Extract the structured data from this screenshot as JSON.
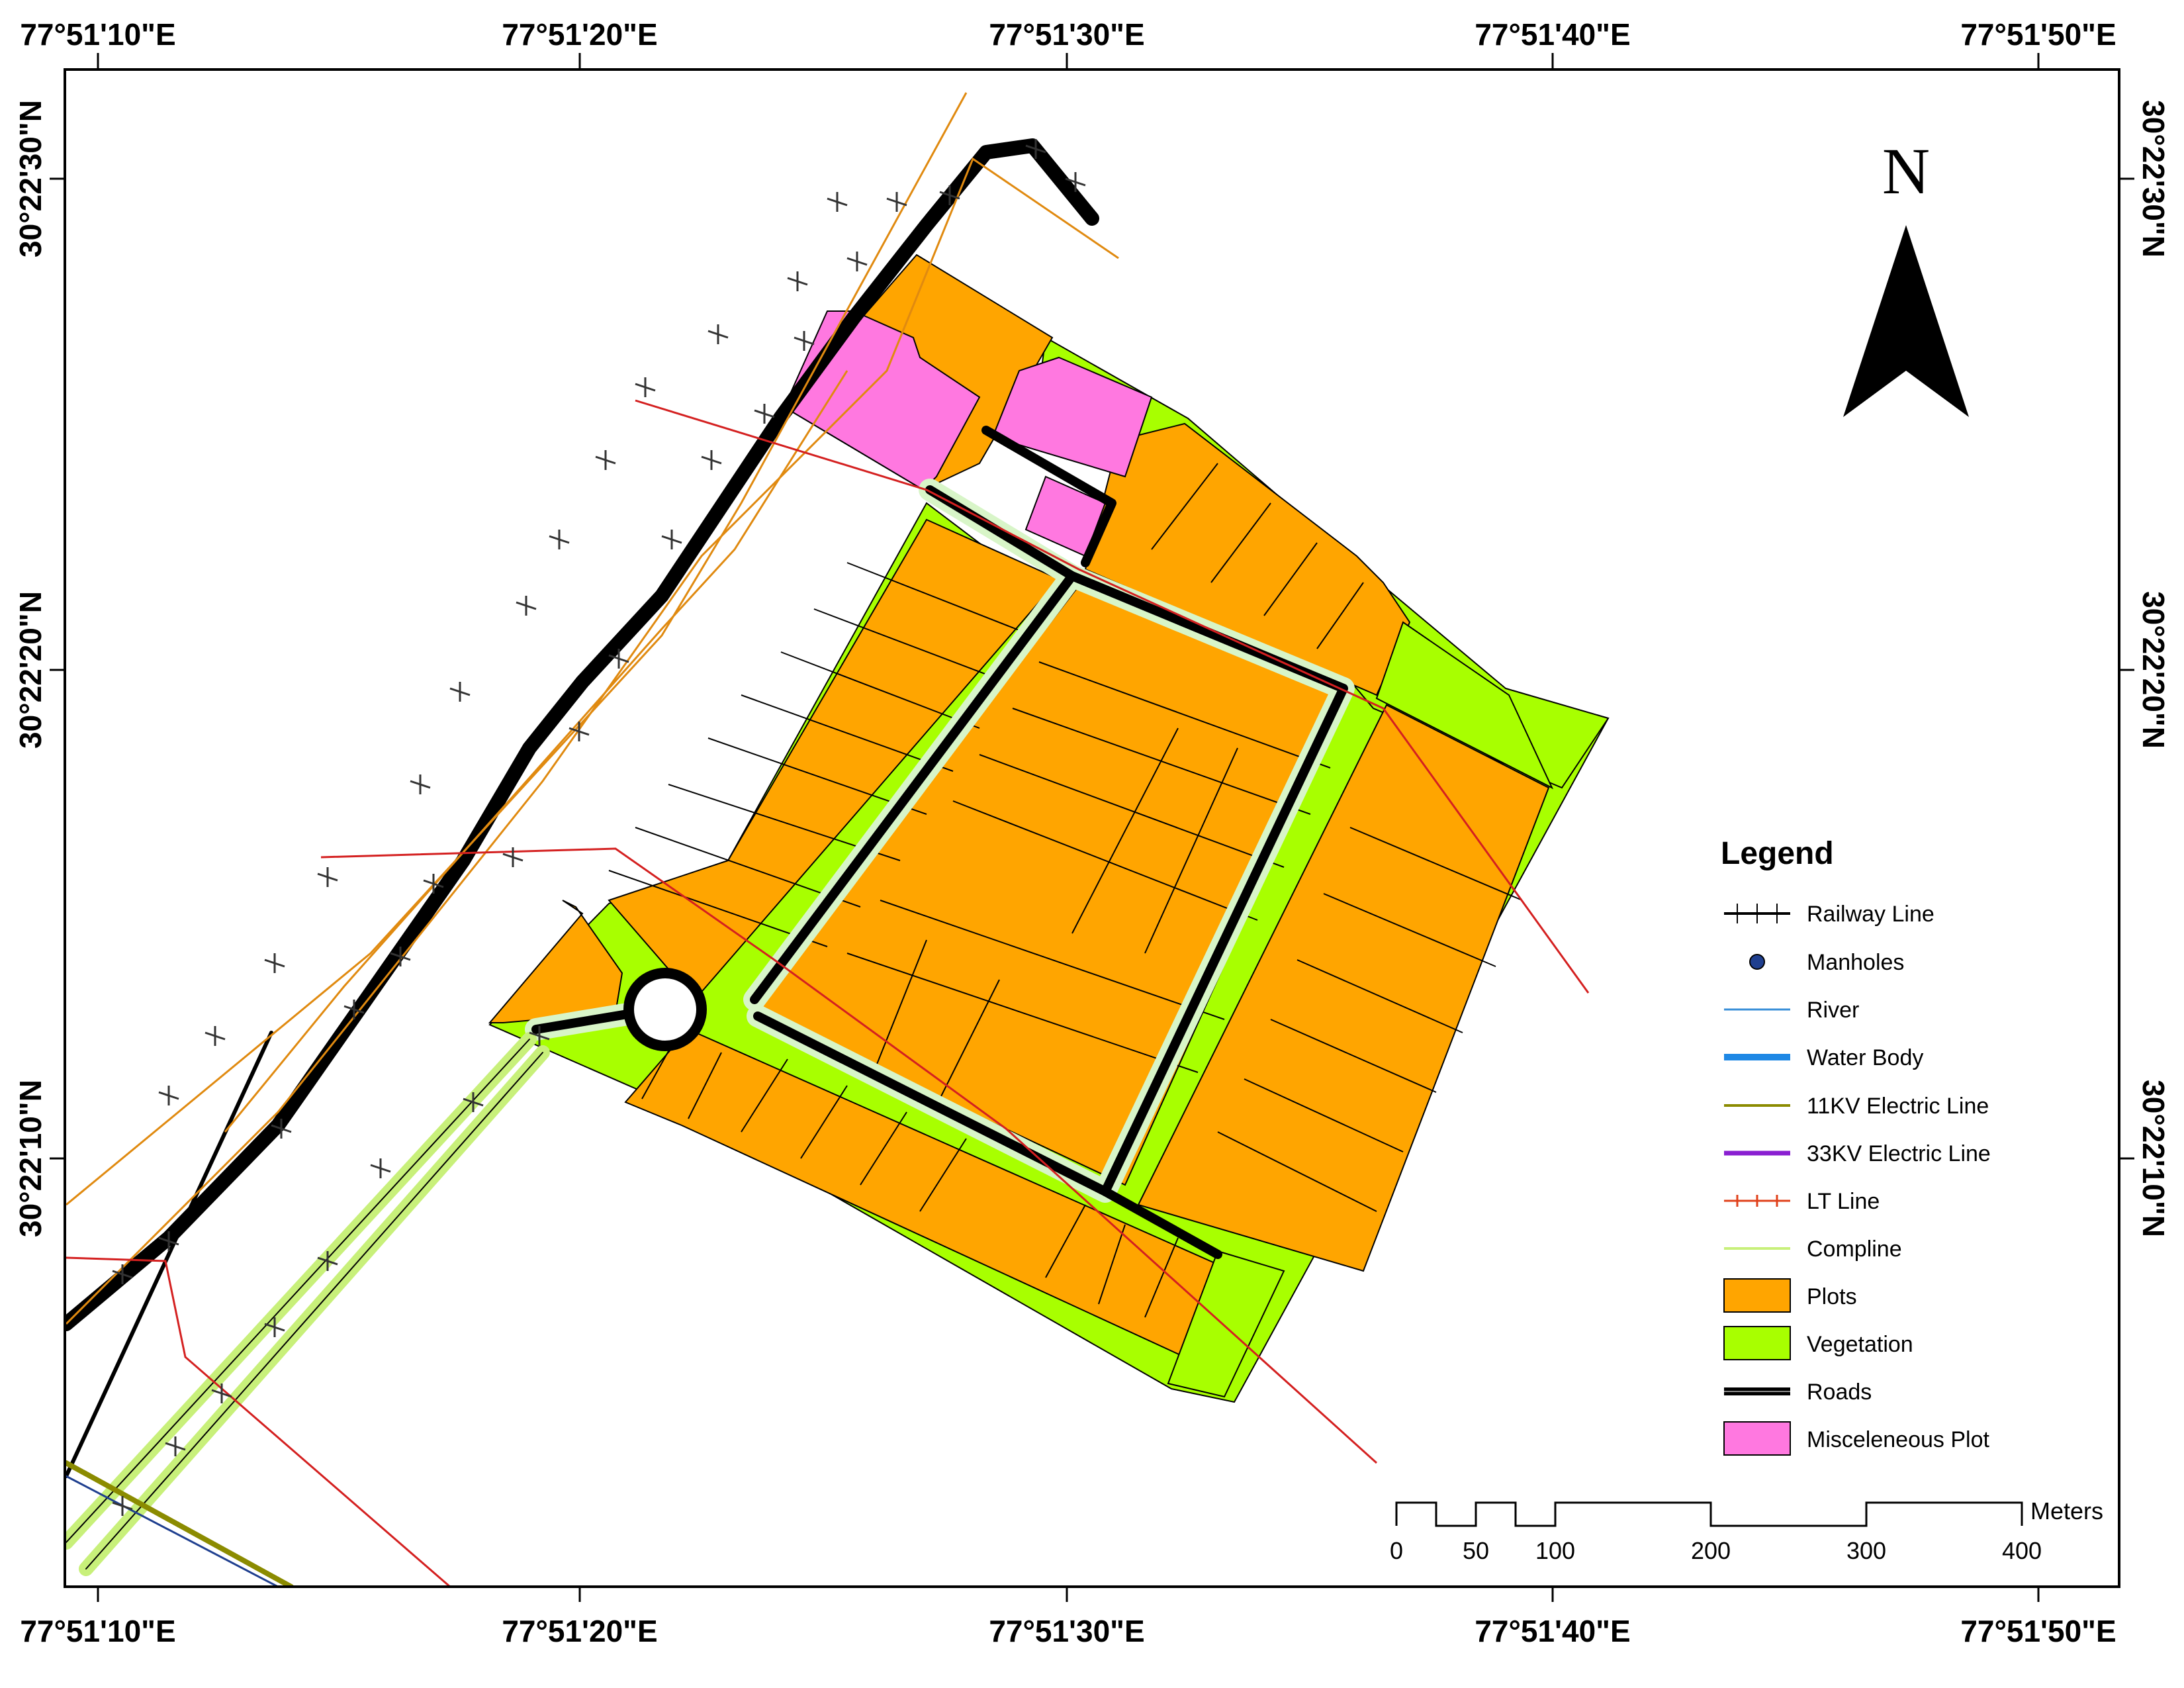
{
  "map": {
    "top_ticks": [
      "77°51'10\"E",
      "77°51'20\"E",
      "77°51'30\"E",
      "77°51'40\"E",
      "77°51'50\"E"
    ],
    "bottom_ticks": [
      "77°51'10\"E",
      "77°51'20\"E",
      "77°51'30\"E",
      "77°51'40\"E",
      "77°51'50\"E"
    ],
    "left_ticks": [
      "30°22'30\"N",
      "30°22'20\"N",
      "30°22'10\"N"
    ],
    "right_ticks": [
      "30°22'30\"N",
      "30°22'20\"N",
      "30°22'10\"N"
    ]
  },
  "north_arrow": {
    "label": "N"
  },
  "legend": {
    "title": "Legend",
    "items": [
      {
        "label": "Railway Line",
        "symbol": "railway",
        "color": "#000000"
      },
      {
        "label": "Manholes",
        "symbol": "point",
        "color": "#1f3f8f"
      },
      {
        "label": "River",
        "symbol": "line-thin",
        "color": "#3a8fd8"
      },
      {
        "label": "Water Body",
        "symbol": "line-thick",
        "color": "#1e88e5"
      },
      {
        "label": "11KV Electric Line",
        "symbol": "line-medium",
        "color": "#8b8b00"
      },
      {
        "label": "33KV Electric Line",
        "symbol": "line-thick",
        "color": "#8a1fd1"
      },
      {
        "label": "LT Line",
        "symbol": "lt-line",
        "color": "#e0401a"
      },
      {
        "label": "Compline",
        "symbol": "line-medium",
        "color": "#c8f07a"
      },
      {
        "label": "Plots",
        "symbol": "box",
        "color": "#ffa500"
      },
      {
        "label": "Vegetation",
        "symbol": "box",
        "color": "#a8ff00"
      },
      {
        "label": "Roads",
        "symbol": "road",
        "color": "#000000"
      },
      {
        "label": "Misceleneous Plot",
        "symbol": "box",
        "color": "#ff78e0"
      }
    ]
  },
  "scale_bar": {
    "unit": "Meters",
    "labels": [
      "0",
      "50",
      "100",
      "200",
      "300",
      "400"
    ]
  },
  "colors": {
    "plots": "#ffa500",
    "vegetation": "#a8ff00",
    "misc_plot": "#ff78e0",
    "road": "#000000",
    "road_edge": "#d8f5c8",
    "lt_line": "#d42020",
    "electric_orange": "#e08a10"
  }
}
